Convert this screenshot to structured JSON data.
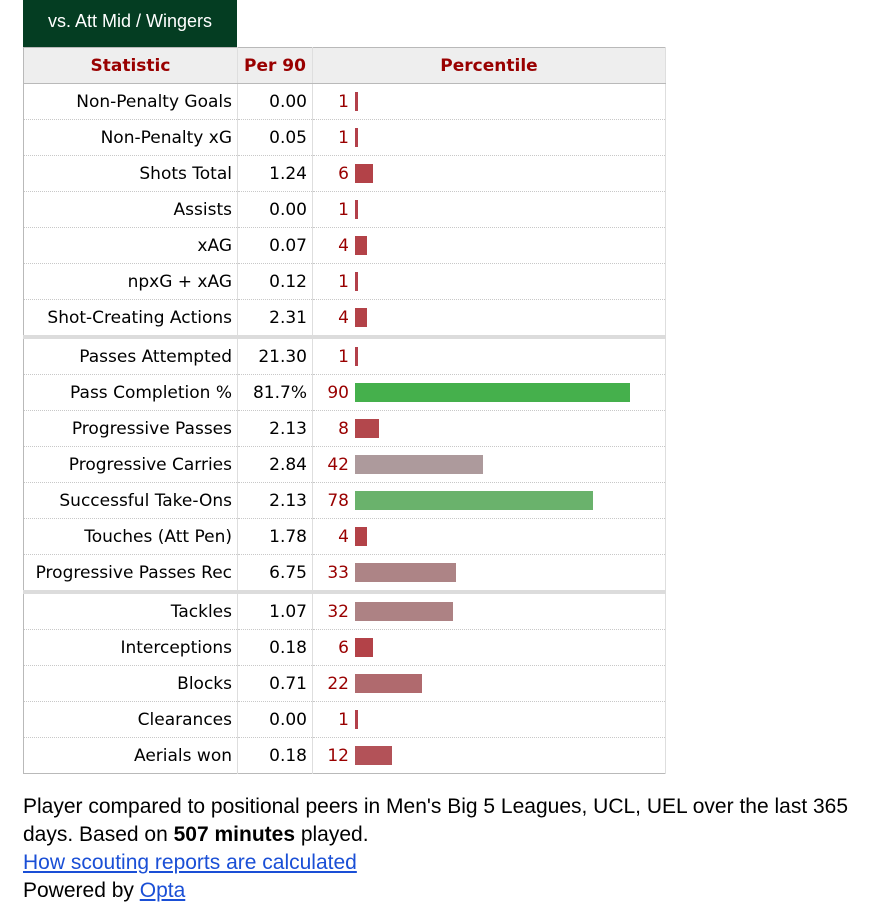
{
  "tab_label": "vs. Att Mid / Wingers",
  "headers": {
    "statistic": "Statistic",
    "per90": "Per 90",
    "percentile": "Percentile"
  },
  "rows": [
    {
      "stat": "Non-Penalty Goals",
      "per90": "0.00",
      "pct": 1,
      "color": "#b3404a",
      "sep": false
    },
    {
      "stat": "Non-Penalty xG",
      "per90": "0.05",
      "pct": 1,
      "color": "#b3404a",
      "sep": false
    },
    {
      "stat": "Shots Total",
      "per90": "1.24",
      "pct": 6,
      "color": "#b34248",
      "sep": false
    },
    {
      "stat": "Assists",
      "per90": "0.00",
      "pct": 1,
      "color": "#b3404a",
      "sep": false
    },
    {
      "stat": "xAG",
      "per90": "0.07",
      "pct": 4,
      "color": "#b34248",
      "sep": false
    },
    {
      "stat": "npxG + xAG",
      "per90": "0.12",
      "pct": 1,
      "color": "#b3404a",
      "sep": false
    },
    {
      "stat": "Shot-Creating Actions",
      "per90": "2.31",
      "pct": 4,
      "color": "#b34248",
      "sep": false
    },
    {
      "stat": "Passes Attempted",
      "per90": "21.30",
      "pct": 1,
      "color": "#b3404a",
      "sep": true
    },
    {
      "stat": "Pass Completion %",
      "per90": "81.7%",
      "pct": 90,
      "color": "#45b04c",
      "sep": false
    },
    {
      "stat": "Progressive Passes",
      "per90": "2.13",
      "pct": 8,
      "color": "#b3474c",
      "sep": false
    },
    {
      "stat": "Progressive Carries",
      "per90": "2.84",
      "pct": 42,
      "color": "#ad9a9c",
      "sep": false
    },
    {
      "stat": "Successful Take-Ons",
      "per90": "2.13",
      "pct": 78,
      "color": "#6ab26c",
      "sep": false
    },
    {
      "stat": "Touches (Att Pen)",
      "per90": "1.78",
      "pct": 4,
      "color": "#b34248",
      "sep": false
    },
    {
      "stat": "Progressive Passes Rec",
      "per90": "6.75",
      "pct": 33,
      "color": "#ad8486",
      "sep": false
    },
    {
      "stat": "Tackles",
      "per90": "1.07",
      "pct": 32,
      "color": "#ad8284",
      "sep": true
    },
    {
      "stat": "Interceptions",
      "per90": "0.18",
      "pct": 6,
      "color": "#b34248",
      "sep": false
    },
    {
      "stat": "Blocks",
      "per90": "0.71",
      "pct": 22,
      "color": "#b06a6e",
      "sep": false
    },
    {
      "stat": "Clearances",
      "per90": "0.00",
      "pct": 1,
      "color": "#b3404a",
      "sep": false
    },
    {
      "stat": "Aerials won",
      "per90": "0.18",
      "pct": 12,
      "color": "#b35258",
      "sep": false
    }
  ],
  "footer": {
    "text_before": "Player compared to positional peers in Men's Big 5 Leagues, UCL, UEL over the last 365 days. Based on ",
    "minutes": "507 minutes",
    "text_after": " played.",
    "link_label": "How scouting reports are calculated",
    "powered_by": "Powered by ",
    "opta_label": "Opta"
  }
}
